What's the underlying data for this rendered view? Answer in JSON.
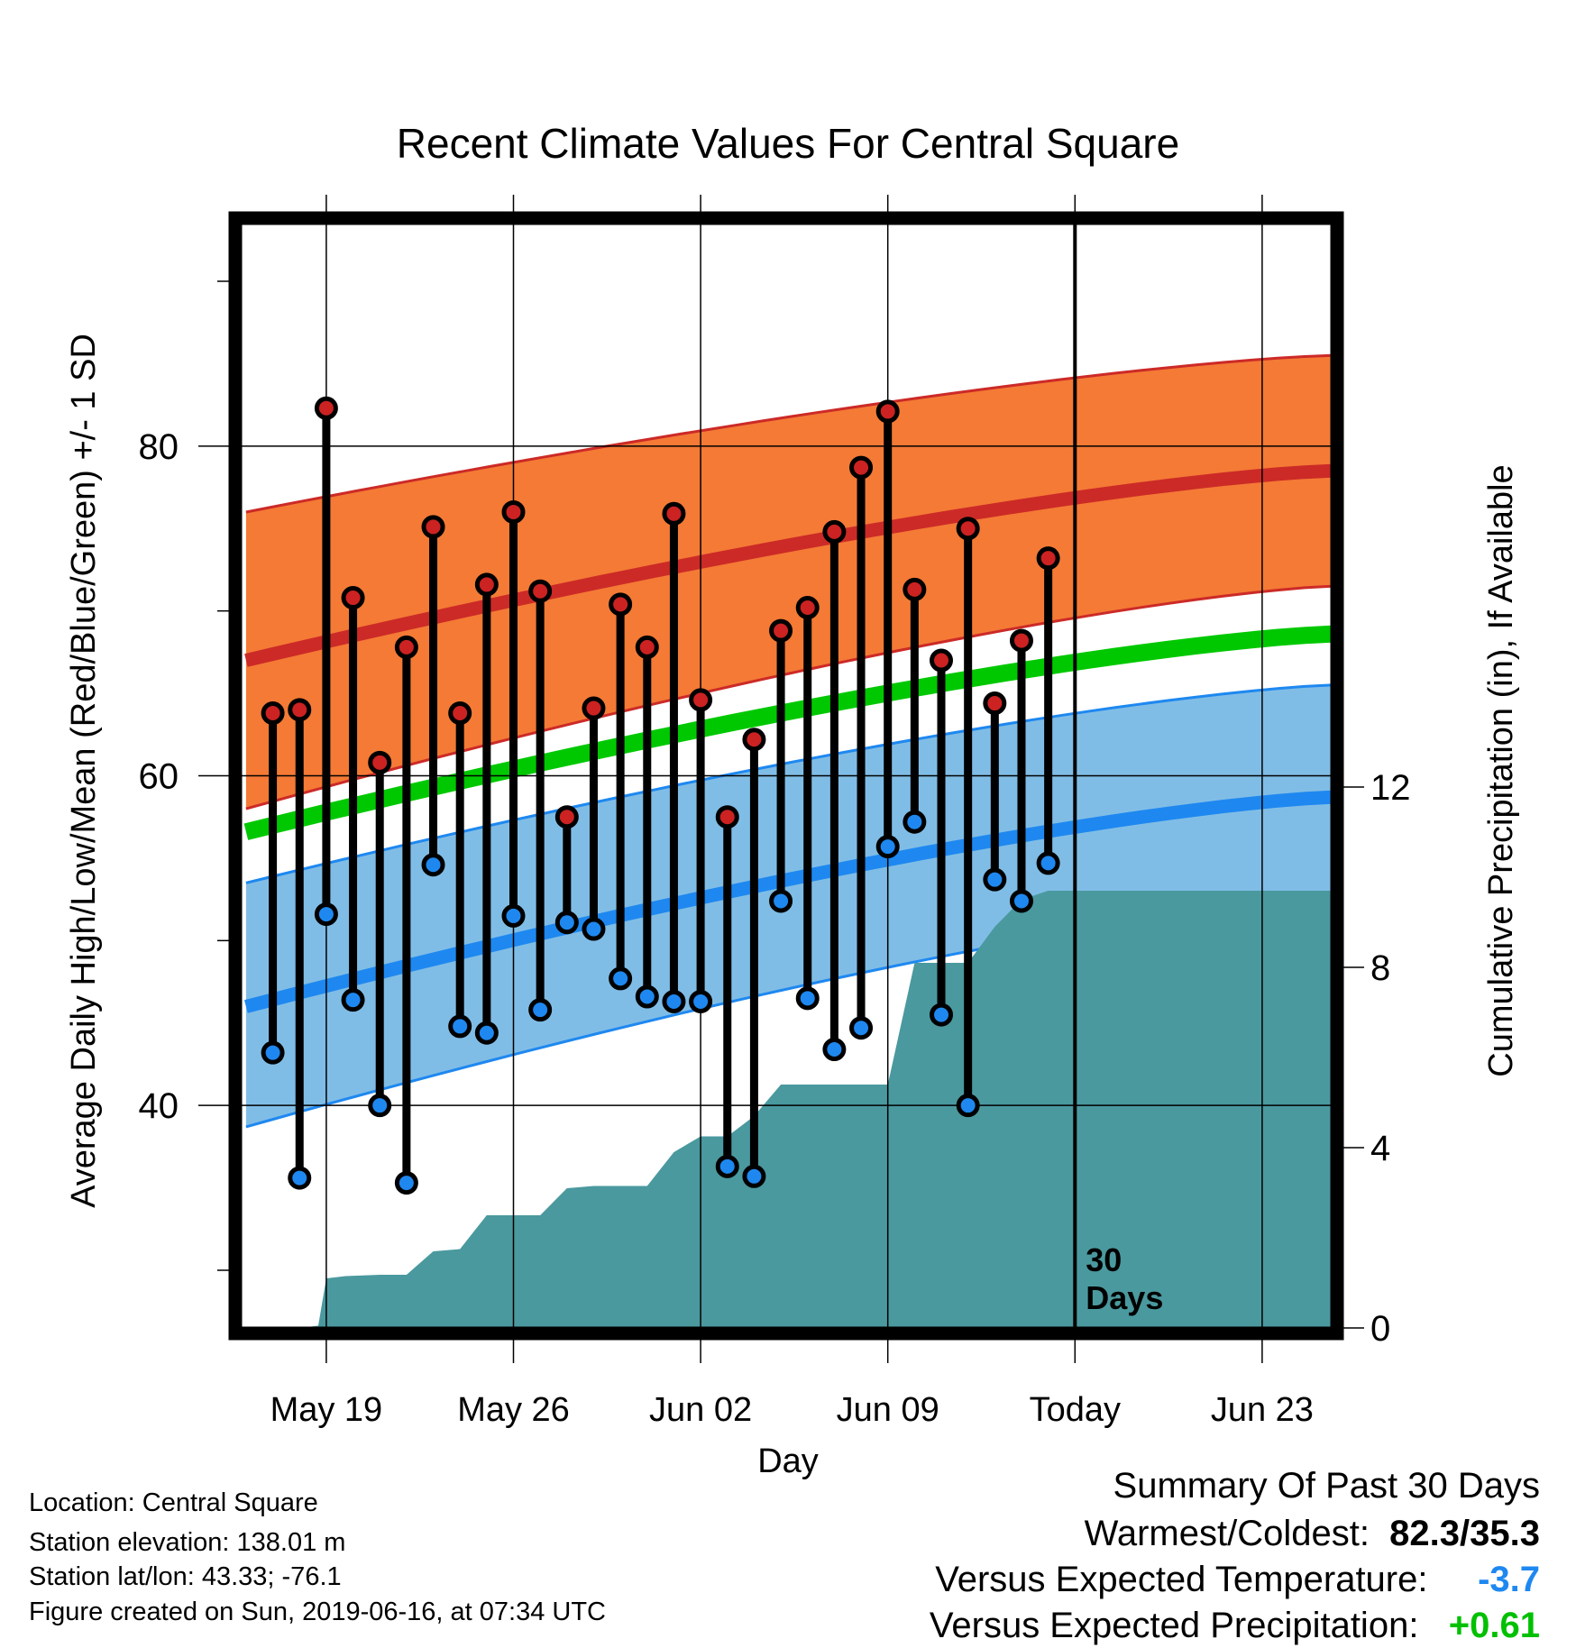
{
  "chart_data": {
    "type": "line",
    "title": "Recent Climate Values For Central Square",
    "xlabel": "Day",
    "ylabel": "Average Daily High/Low/Mean (Red/Blue/Green) +/- 1 SD",
    "y2label": "Cumulative Precipitation (in), If Available",
    "x_ticks": [
      "May 19",
      "May 26",
      "Jun 02",
      "Jun 09",
      "Today",
      "Jun 23"
    ],
    "x_tick_days": [
      19,
      26,
      33,
      40,
      47,
      54
    ],
    "xlim": [
      15.8,
      56.6
    ],
    "y_ticks": [
      40,
      60,
      80
    ],
    "ylim": [
      26.5,
      93.5
    ],
    "y2_ticks": [
      0,
      4,
      8,
      12
    ],
    "y2lim": [
      0,
      24.5
    ],
    "today_day": 47,
    "today_label_line1": "30",
    "today_label_line2": "Days",
    "days": [
      17,
      18,
      19,
      20,
      21,
      22,
      23,
      24,
      25,
      26,
      27,
      28,
      29,
      30,
      31,
      32,
      33,
      34,
      35,
      36,
      37,
      38,
      39,
      40,
      41,
      42,
      43,
      44,
      45,
      46
    ],
    "daily_high": [
      63.8,
      64.0,
      82.3,
      70.8,
      60.8,
      67.8,
      75.1,
      63.8,
      71.6,
      76.0,
      71.2,
      57.5,
      64.1,
      70.4,
      67.8,
      75.9,
      64.6,
      57.5,
      62.2,
      68.8,
      70.2,
      74.8,
      78.7,
      82.1,
      71.3,
      67.0,
      75.0,
      64.4,
      68.2,
      73.2
    ],
    "daily_low": [
      43.2,
      35.6,
      51.6,
      46.4,
      40.0,
      35.3,
      54.6,
      44.8,
      44.4,
      51.5,
      45.8,
      51.1,
      50.7,
      47.7,
      46.6,
      46.3,
      46.3,
      36.3,
      35.7,
      52.4,
      46.5,
      43.4,
      44.7,
      55.7,
      57.2,
      45.5,
      40.0,
      53.7,
      52.4,
      54.7
    ],
    "normal": {
      "days": [
        16,
        56.6
      ],
      "high": [
        67,
        78.5
      ],
      "high_sd_upper": [
        76,
        85.5
      ],
      "high_sd_lower": [
        58,
        71.5
      ],
      "low": [
        46,
        58.7
      ],
      "low_sd_upper": [
        53.5,
        65.5
      ],
      "low_sd_lower": [
        38.7,
        52.5
      ],
      "mean": [
        56.6,
        68.6
      ]
    },
    "precip_cumulative": {
      "days": [
        16,
        18,
        18.7,
        19,
        19.7,
        21,
        22,
        23,
        24,
        25,
        26,
        27,
        28,
        29,
        30,
        31,
        32,
        33,
        34,
        35,
        36,
        37,
        38,
        39,
        40,
        41,
        42,
        43,
        44,
        45,
        46,
        47,
        56.6
      ],
      "values": [
        0,
        0,
        0.05,
        1.1,
        1.15,
        1.18,
        1.18,
        1.7,
        1.75,
        2.5,
        2.5,
        2.5,
        3.1,
        3.15,
        3.15,
        3.15,
        3.9,
        4.25,
        4.25,
        4.7,
        5.4,
        5.4,
        5.4,
        5.4,
        5.4,
        8.1,
        8.1,
        8.1,
        8.9,
        9.5,
        9.7,
        9.7,
        9.7
      ]
    },
    "colors": {
      "high_band": "#f47a35",
      "high_line": "#cc2a27",
      "low_band": "#80bde6",
      "low_line": "#1e88f0",
      "mean_line": "#00c800",
      "precip": "#4a999f",
      "high_dot": "#cc2222",
      "low_dot": "#1e88f0"
    }
  },
  "station": {
    "location": "Location: Central Square",
    "elevation": "Station elevation: 138.01 m",
    "latlon": "Station lat/lon: 43.33; -76.1",
    "created": "Figure created on Sun, 2019-06-16, at 07:34 UTC"
  },
  "summary": {
    "title": "Summary Of Past 30 Days",
    "warmest_label": "Warmest/Coldest:",
    "warmest_value": "82.3/35.3",
    "temp_label": "Versus Expected Temperature:",
    "temp_value": "-3.7",
    "temp_color": "#1e88f0",
    "precip_label": "Versus Expected Precipitation:",
    "precip_value": "+0.61",
    "precip_color": "#00c000"
  }
}
